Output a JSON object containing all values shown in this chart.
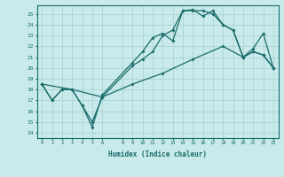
{
  "background_color": "#c8eaea",
  "grid_color": "#a8cece",
  "line_color": "#1a6b6b",
  "marker": "D",
  "markersize": 2.0,
  "linewidth": 0.9,
  "xlabel": "Humidex (Indice chaleur)",
  "xlim": [
    -0.5,
    23.5
  ],
  "ylim": [
    13.5,
    25.8
  ],
  "yticks": [
    14,
    15,
    16,
    17,
    18,
    19,
    20,
    21,
    22,
    23,
    24,
    25
  ],
  "xticks": [
    0,
    1,
    2,
    3,
    4,
    5,
    6,
    8,
    9,
    10,
    11,
    12,
    13,
    14,
    15,
    16,
    17,
    18,
    19,
    20,
    21,
    22,
    23
  ],
  "xtick_labels": [
    "0",
    "1",
    "2",
    "3",
    "4",
    "5",
    "6",
    "8",
    "9",
    "10",
    "11",
    "12",
    "13",
    "14",
    "15",
    "16",
    "17",
    "18",
    "19",
    "20",
    "21",
    "22",
    "23"
  ],
  "line1_x": [
    0,
    1,
    2,
    3,
    4,
    5,
    6,
    9,
    10,
    11,
    12,
    13,
    14,
    15,
    16,
    17,
    18,
    19,
    20,
    21,
    22,
    23
  ],
  "line1_y": [
    18.5,
    17.0,
    18.0,
    18.0,
    16.5,
    14.5,
    17.5,
    20.5,
    21.5,
    22.8,
    23.2,
    22.5,
    25.3,
    25.4,
    24.8,
    25.3,
    24.0,
    23.5,
    21.0,
    21.5,
    21.2,
    20.0
  ],
  "line2_x": [
    0,
    1,
    2,
    3,
    4,
    5,
    6,
    9,
    10,
    11,
    12,
    13,
    14,
    15,
    16,
    17,
    18,
    19,
    20,
    21,
    22,
    23
  ],
  "line2_y": [
    18.5,
    17.0,
    18.0,
    18.0,
    16.5,
    15.0,
    17.3,
    20.2,
    20.8,
    21.5,
    23.0,
    23.5,
    25.3,
    25.3,
    25.3,
    25.0,
    24.0,
    23.5,
    21.0,
    21.5,
    21.2,
    20.0
  ],
  "line3_x": [
    0,
    3,
    6,
    9,
    12,
    15,
    18,
    20,
    21,
    22,
    23
  ],
  "line3_y": [
    18.5,
    18.0,
    17.3,
    18.5,
    19.5,
    20.8,
    22.0,
    21.0,
    21.8,
    23.2,
    20.0
  ]
}
